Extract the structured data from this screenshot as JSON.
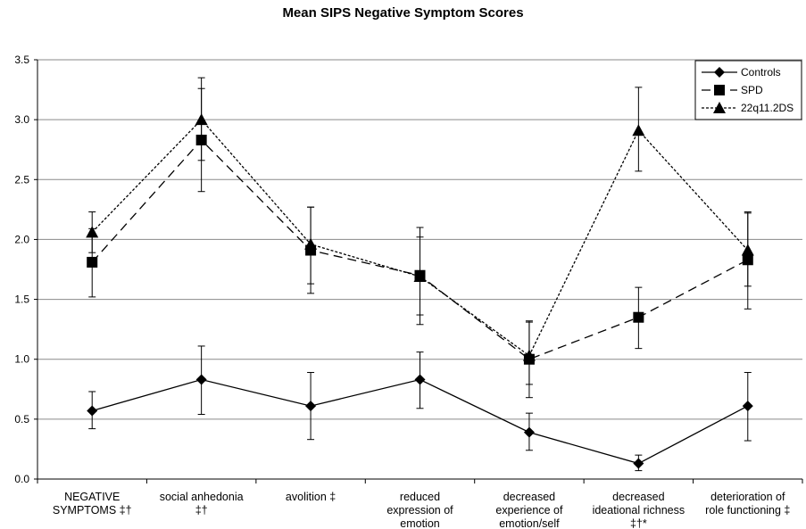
{
  "chart_data": {
    "type": "line",
    "title": "Mean SIPS Negative Symptom Scores",
    "xlabel": "",
    "ylabel": "",
    "ylim": [
      0,
      3.5
    ],
    "yticks": [
      "0.0",
      "0.5",
      "1.0",
      "1.5",
      "2.0",
      "2.5",
      "3.0",
      "3.5"
    ],
    "grid": "horizontal",
    "legend_position": "top-right",
    "categories": [
      [
        "NEGATIVE",
        "SYMPTOMS ‡†"
      ],
      [
        "social anhedonia",
        "‡†"
      ],
      [
        "avolition ‡"
      ],
      [
        "reduced",
        "expression of",
        "emotion"
      ],
      [
        "decreased",
        "experience of",
        "emotion/self"
      ],
      [
        "decreased",
        "ideational richness",
        "‡†*"
      ],
      [
        "deterioration of",
        "role functioning ‡"
      ]
    ],
    "series": [
      {
        "name": "Controls",
        "marker": "diamond",
        "dash": "solid",
        "values": [
          0.57,
          0.83,
          0.61,
          0.83,
          0.39,
          0.13,
          0.61
        ],
        "err_low": [
          0.42,
          0.54,
          0.33,
          0.59,
          0.24,
          0.07,
          0.32
        ],
        "err_high": [
          0.73,
          1.11,
          0.89,
          1.06,
          0.55,
          0.2,
          0.89
        ]
      },
      {
        "name": "SPD",
        "marker": "square",
        "dash": "long-dash",
        "values": [
          1.81,
          2.83,
          1.91,
          1.7,
          1.0,
          1.35,
          1.83
        ],
        "err_low": [
          1.52,
          2.4,
          1.63,
          1.37,
          0.68,
          1.09,
          1.42
        ],
        "err_high": [
          2.09,
          3.26,
          2.27,
          2.02,
          1.31,
          1.6,
          2.22
        ]
      },
      {
        "name": "22q11.2DS",
        "marker": "triangle",
        "dash": "short-dash",
        "values": [
          2.06,
          3.0,
          1.96,
          1.69,
          1.03,
          2.91,
          1.91
        ],
        "err_low": [
          1.89,
          2.66,
          1.55,
          1.29,
          0.79,
          2.57,
          1.61
        ],
        "err_high": [
          2.23,
          3.35,
          2.27,
          2.1,
          1.32,
          3.27,
          2.23
        ]
      }
    ]
  }
}
